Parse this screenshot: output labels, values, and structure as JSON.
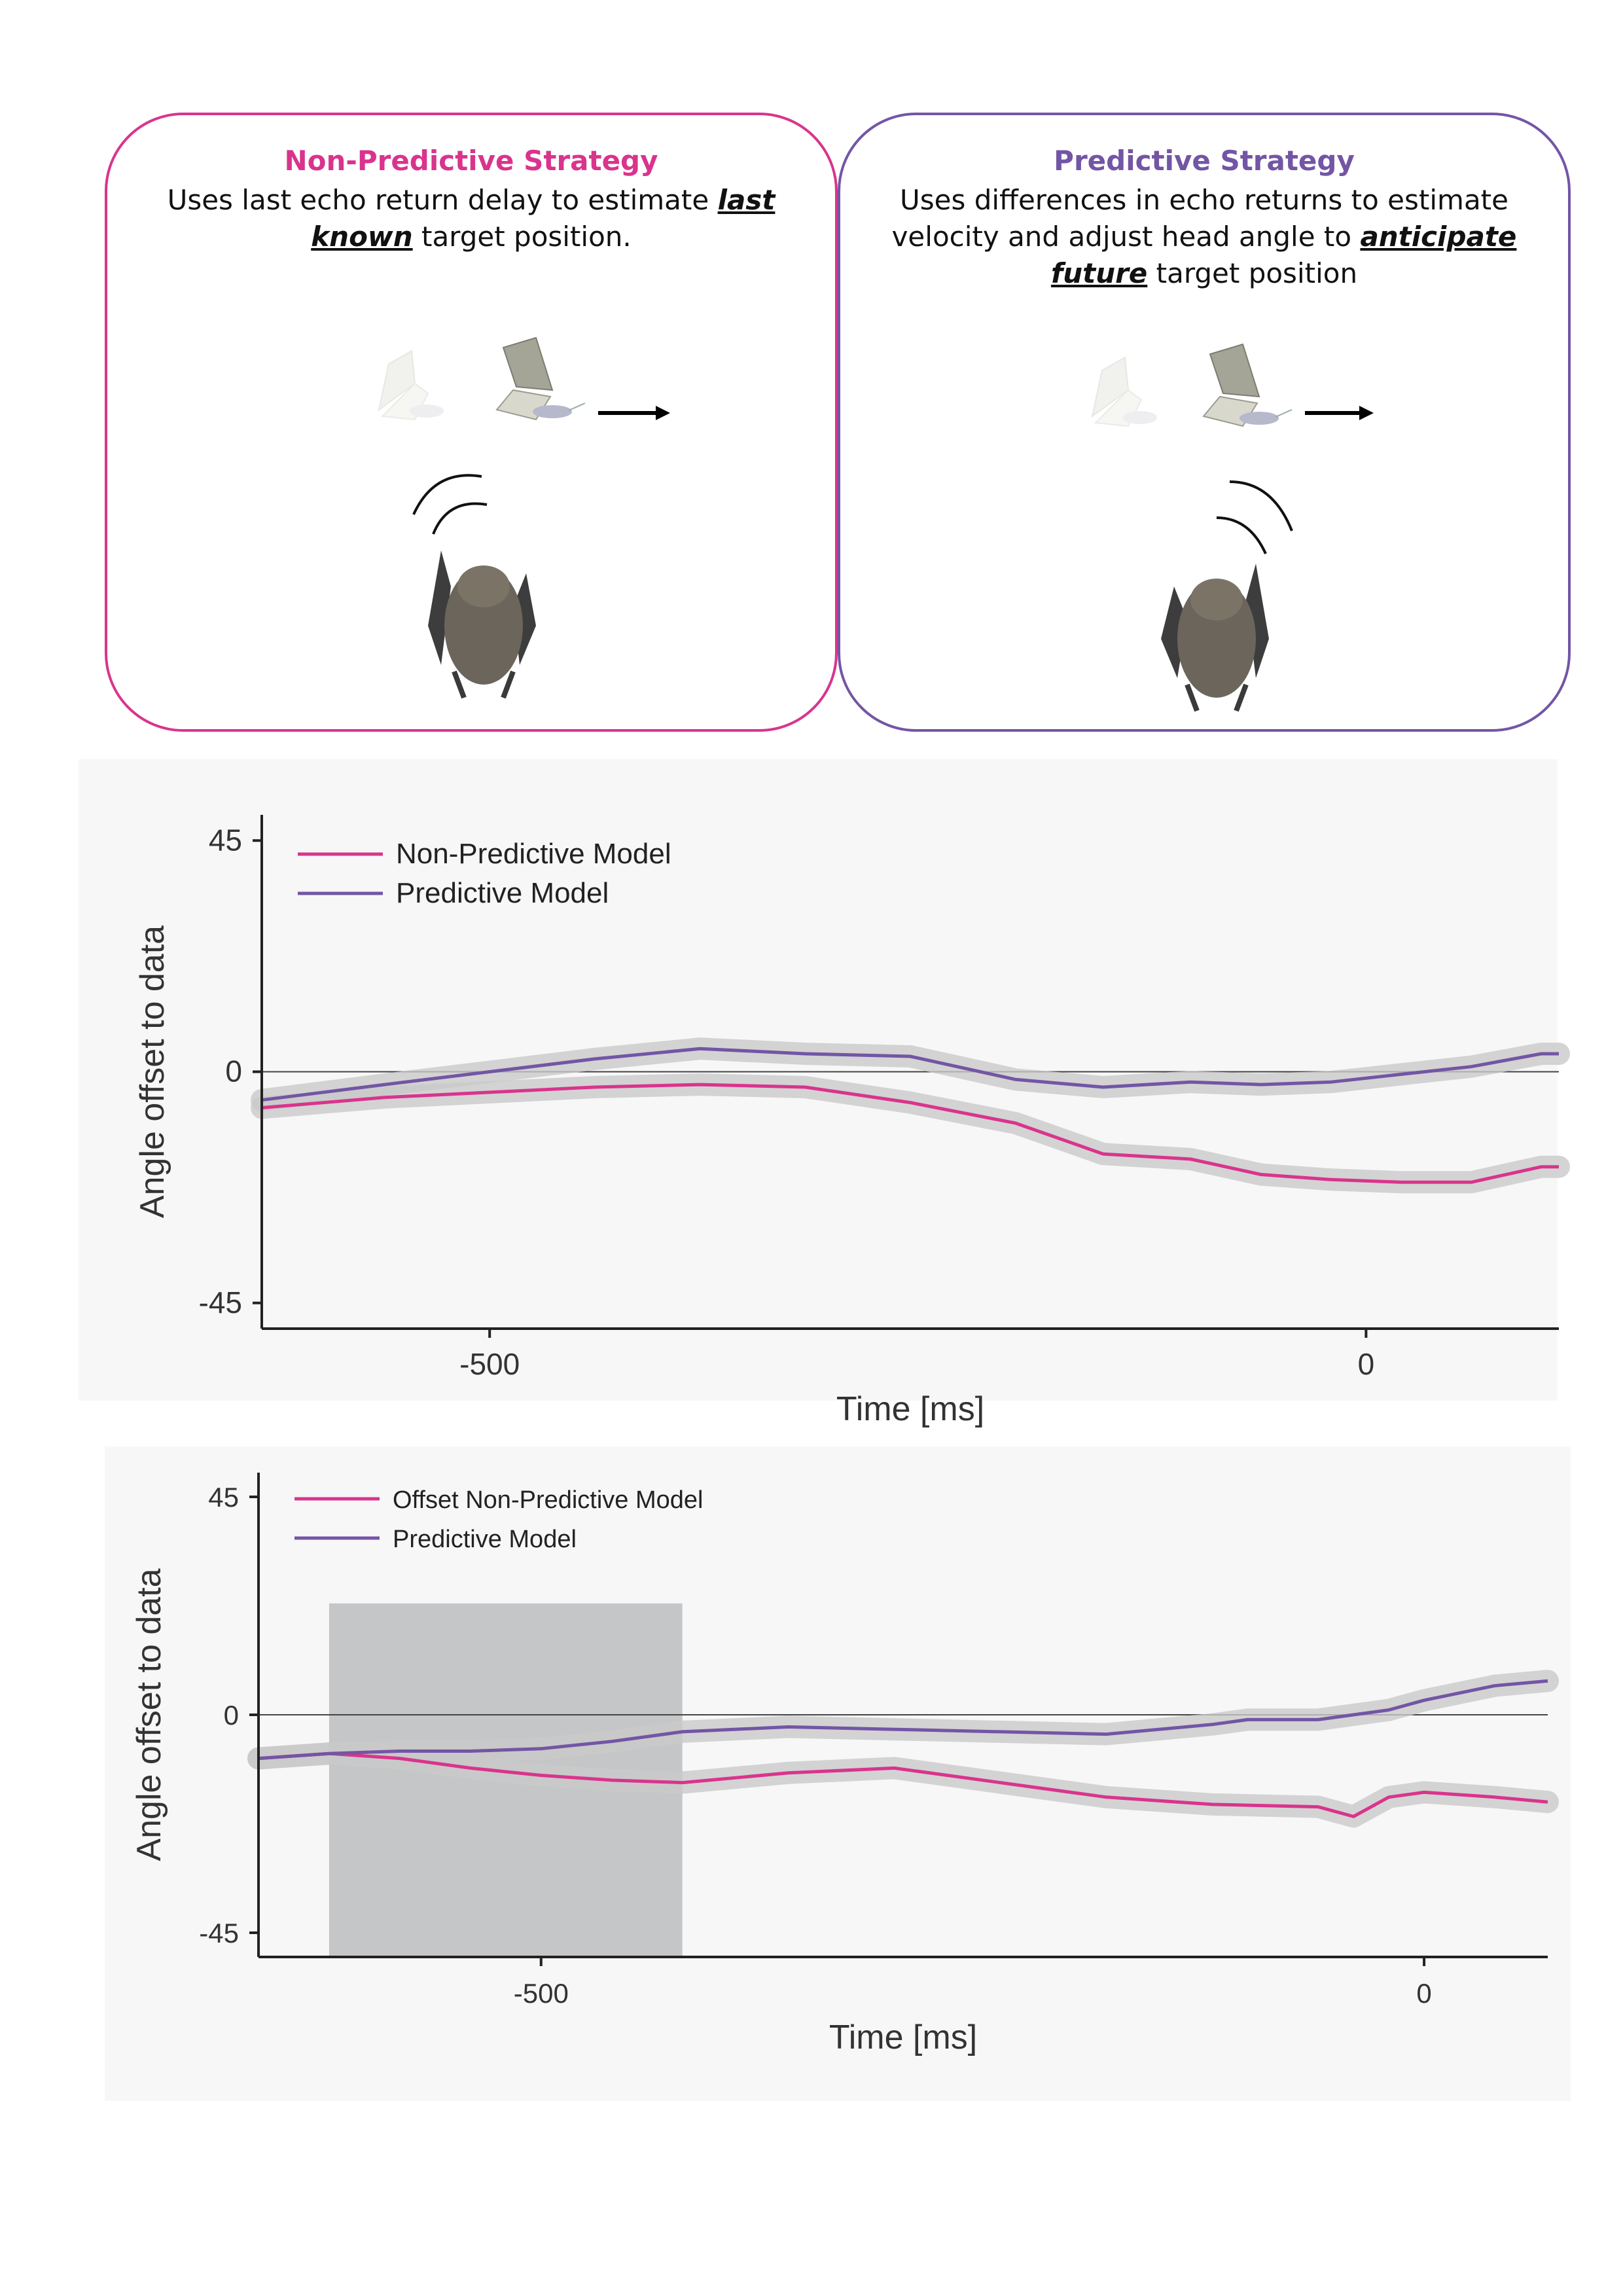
{
  "panels": {
    "left": {
      "title": "Non-Predictive Strategy",
      "desc_pre": "Uses last echo return delay to estimate ",
      "desc_em": "last known",
      "desc_post": " target position."
    },
    "right": {
      "title": "Predictive Strategy",
      "desc_pre": "Uses differences in echo returns to estimate velocity and adjust head angle to ",
      "desc_em": "anticipate future",
      "desc_post": " target position"
    }
  },
  "colors": {
    "nonpred": "#d9348d",
    "pred": "#7355a5",
    "band": "#c9c9c9",
    "shade": "#b4b5b8"
  },
  "chart_data": [
    {
      "type": "line",
      "xlabel": "Time [ms]",
      "ylabel": "Angle offset to data",
      "xlim": [
        -630,
        110
      ],
      "ylim": [
        -50,
        50
      ],
      "xticks": [
        -500,
        0
      ],
      "yticks": [
        45,
        0,
        -45
      ],
      "xtick_labels": [
        "-500",
        "0"
      ],
      "ytick_labels": [
        "45",
        "0",
        "-45"
      ],
      "reference_line": 0,
      "series": [
        {
          "name": "Non-Predictive Model",
          "color_key": "nonpred",
          "x": [
            -630,
            -560,
            -500,
            -440,
            -380,
            -320,
            -260,
            -200,
            -150,
            -100,
            -60,
            -20,
            20,
            60,
            100,
            110
          ],
          "y": [
            -7,
            -5,
            -4,
            -3,
            -2.5,
            -3,
            -6,
            -10,
            -16,
            -17,
            -20,
            -21,
            -21.5,
            -21.5,
            -18.5,
            -18.5
          ]
        },
        {
          "name": "Predictive Model",
          "color_key": "pred",
          "x": [
            -630,
            -560,
            -500,
            -440,
            -380,
            -320,
            -260,
            -200,
            -150,
            -100,
            -60,
            -20,
            20,
            60,
            100,
            110
          ],
          "y": [
            -5.5,
            -2.5,
            0,
            2.5,
            4.5,
            3.5,
            3,
            -1.5,
            -3,
            -2,
            -2.5,
            -2,
            -0.5,
            1,
            3.5,
            3.5
          ]
        }
      ]
    },
    {
      "type": "line",
      "xlabel": "Time [ms]",
      "ylabel": "Angle offset to data",
      "xlim": [
        -660,
        70
      ],
      "ylim": [
        -50,
        50
      ],
      "xticks": [
        -500,
        0
      ],
      "yticks": [
        45,
        0,
        -45
      ],
      "xtick_labels": [
        "-500",
        "0"
      ],
      "ytick_labels": [
        "45",
        "0",
        "-45"
      ],
      "reference_line": 0,
      "shaded_window": {
        "x0": -620,
        "x1": -420,
        "y0": -50,
        "y1": 23
      },
      "series": [
        {
          "name": "Offset Non-Predictive Model",
          "color_key": "nonpred",
          "x": [
            -660,
            -620,
            -580,
            -540,
            -500,
            -460,
            -420,
            -360,
            -300,
            -240,
            -180,
            -120,
            -60,
            -40,
            -20,
            0,
            40,
            70
          ],
          "y": [
            -9,
            -8,
            -9,
            -11,
            -12.5,
            -13.5,
            -14,
            -12,
            -11,
            -14,
            -17,
            -18.5,
            -19,
            -21,
            -17,
            -16,
            -17,
            -18
          ]
        },
        {
          "name": "Predictive Model",
          "color_key": "pred",
          "x": [
            -660,
            -620,
            -580,
            -540,
            -500,
            -460,
            -420,
            -360,
            -300,
            -240,
            -180,
            -120,
            -100,
            -60,
            -20,
            0,
            40,
            70
          ],
          "y": [
            -9,
            -8,
            -7.5,
            -7.5,
            -7,
            -5.5,
            -3.5,
            -2.5,
            -3,
            -3.5,
            -4,
            -2,
            -1,
            -1,
            1,
            3,
            6,
            7
          ]
        }
      ]
    }
  ]
}
